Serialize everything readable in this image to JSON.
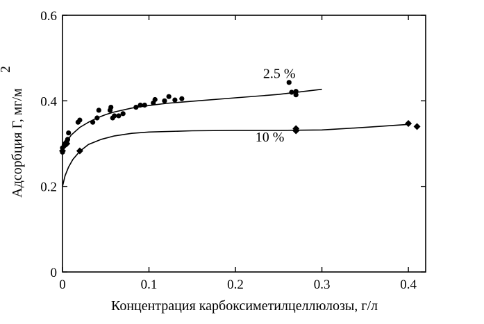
{
  "chart_data": {
    "type": "scatter",
    "title": "",
    "xlabel": "Концентрация карбоксиметилцеллюлозы, г/л",
    "ylabel": "Адсорбция Г, мг/м",
    "ylabel_superscript": "2",
    "xlim": [
      0,
      0.42
    ],
    "ylim": [
      0,
      0.6
    ],
    "xticks": [
      0,
      0.1,
      0.2,
      0.3,
      0.4
    ],
    "xtick_labels": [
      "0",
      "0.1",
      "0.2",
      "0.3",
      "0.4"
    ],
    "yticks": [
      0,
      0.2,
      0.4,
      0.6
    ],
    "ytick_labels": [
      "0",
      "0.2",
      "0.4",
      "0.6"
    ],
    "grid": false,
    "legend": "none",
    "series": [
      {
        "name": "2.5 %",
        "marker": "circle",
        "color": "#000000",
        "points": [
          [
            0.0,
            0.28
          ],
          [
            0.0,
            0.29
          ],
          [
            0.002,
            0.296
          ],
          [
            0.003,
            0.3
          ],
          [
            0.004,
            0.302
          ],
          [
            0.005,
            0.305
          ],
          [
            0.006,
            0.31
          ],
          [
            0.007,
            0.325
          ],
          [
            0.018,
            0.35
          ],
          [
            0.02,
            0.355
          ],
          [
            0.035,
            0.35
          ],
          [
            0.04,
            0.36
          ],
          [
            0.042,
            0.378
          ],
          [
            0.055,
            0.378
          ],
          [
            0.056,
            0.385
          ],
          [
            0.058,
            0.36
          ],
          [
            0.06,
            0.365
          ],
          [
            0.065,
            0.365
          ],
          [
            0.07,
            0.37
          ],
          [
            0.085,
            0.385
          ],
          [
            0.09,
            0.39
          ],
          [
            0.095,
            0.39
          ],
          [
            0.105,
            0.395
          ],
          [
            0.107,
            0.403
          ],
          [
            0.118,
            0.4
          ],
          [
            0.123,
            0.41
          ],
          [
            0.13,
            0.402
          ],
          [
            0.138,
            0.405
          ],
          [
            0.262,
            0.443
          ],
          [
            0.265,
            0.42
          ],
          [
            0.27,
            0.422
          ],
          [
            0.27,
            0.414
          ]
        ],
        "fit": [
          [
            0.0,
            0.28
          ],
          [
            0.005,
            0.305
          ],
          [
            0.01,
            0.32
          ],
          [
            0.02,
            0.338
          ],
          [
            0.03,
            0.35
          ],
          [
            0.04,
            0.36
          ],
          [
            0.05,
            0.368
          ],
          [
            0.06,
            0.374
          ],
          [
            0.08,
            0.383
          ],
          [
            0.1,
            0.389
          ],
          [
            0.12,
            0.394
          ],
          [
            0.15,
            0.399
          ],
          [
            0.2,
            0.407
          ],
          [
            0.25,
            0.415
          ],
          [
            0.3,
            0.427
          ]
        ]
      },
      {
        "name": "10 %",
        "marker": "diamond",
        "color": "#000000",
        "points": [
          [
            0.0,
            0.283
          ],
          [
            0.003,
            0.297
          ],
          [
            0.005,
            0.3
          ],
          [
            0.02,
            0.283
          ],
          [
            0.27,
            0.335
          ],
          [
            0.27,
            0.33
          ],
          [
            0.4,
            0.347
          ],
          [
            0.41,
            0.34
          ]
        ],
        "fit": [
          [
            0.0,
            0.2
          ],
          [
            0.003,
            0.225
          ],
          [
            0.007,
            0.245
          ],
          [
            0.012,
            0.263
          ],
          [
            0.02,
            0.282
          ],
          [
            0.03,
            0.298
          ],
          [
            0.045,
            0.31
          ],
          [
            0.06,
            0.318
          ],
          [
            0.08,
            0.324
          ],
          [
            0.1,
            0.327
          ],
          [
            0.15,
            0.33
          ],
          [
            0.2,
            0.331
          ],
          [
            0.25,
            0.331
          ],
          [
            0.3,
            0.332
          ],
          [
            0.35,
            0.338
          ],
          [
            0.4,
            0.345
          ]
        ]
      }
    ],
    "annotations": [
      {
        "text": "2.5 %",
        "x": 0.232,
        "y": 0.453
      },
      {
        "text": "10 %",
        "x": 0.223,
        "y": 0.305
      }
    ]
  }
}
